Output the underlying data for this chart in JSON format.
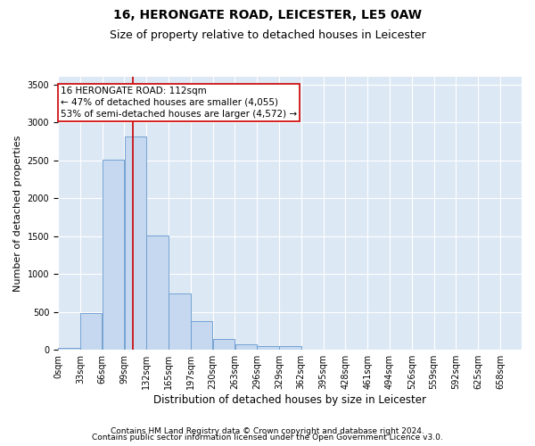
{
  "title1": "16, HERONGATE ROAD, LEICESTER, LE5 0AW",
  "title2": "Size of property relative to detached houses in Leicester",
  "xlabel": "Distribution of detached houses by size in Leicester",
  "ylabel": "Number of detached properties",
  "footnote1": "Contains HM Land Registry data © Crown copyright and database right 2024.",
  "footnote2": "Contains public sector information licensed under the Open Government Licence v3.0.",
  "bin_labels": [
    "0sqm",
    "33sqm",
    "66sqm",
    "99sqm",
    "132sqm",
    "165sqm",
    "197sqm",
    "230sqm",
    "263sqm",
    "296sqm",
    "329sqm",
    "362sqm",
    "395sqm",
    "428sqm",
    "461sqm",
    "494sqm",
    "526sqm",
    "559sqm",
    "592sqm",
    "625sqm",
    "658sqm"
  ],
  "bar_values": [
    25,
    480,
    2510,
    2820,
    1510,
    750,
    385,
    140,
    70,
    55,
    55,
    0,
    0,
    0,
    0,
    0,
    0,
    0,
    0,
    0
  ],
  "bar_color": "#c5d8f0",
  "bar_edge_color": "#6699cc",
  "annotation_line1": "16 HERONGATE ROAD: 112sqm",
  "annotation_line2": "← 47% of detached houses are smaller (4,055)",
  "annotation_line3": "53% of semi-detached houses are larger (4,572) →",
  "annotation_box_color": "#ffffff",
  "annotation_box_edge_color": "#cc0000",
  "vline_x": 112,
  "vline_color": "#cc0000",
  "ylim": [
    0,
    3600
  ],
  "xlim": [
    0,
    692
  ],
  "bin_width": 33,
  "plot_bg_color": "#dde8f5",
  "title1_fontsize": 10,
  "title2_fontsize": 9,
  "xlabel_fontsize": 8.5,
  "ylabel_fontsize": 8,
  "annotation_fontsize": 7.5,
  "footnote_fontsize": 6.5,
  "tick_fontsize": 7
}
